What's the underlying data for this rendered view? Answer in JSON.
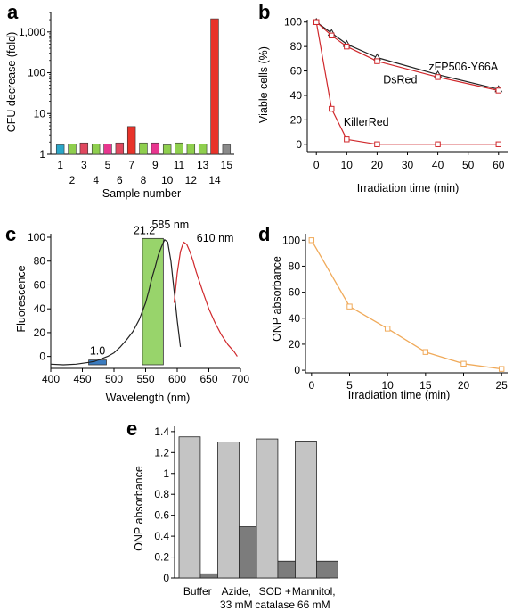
{
  "colors": {
    "bars_a": [
      "#2aa6c8",
      "#8fcf4e",
      "#e0485f",
      "#8fcf4e",
      "#e8368f",
      "#e0485f",
      "#e8332a",
      "#8fcf4e",
      "#e8368f",
      "#8fcf4e",
      "#8fcf4e",
      "#8fcf4e",
      "#8fcf4e",
      "#e8332a",
      "#8a8a8a"
    ],
    "black": "#222222",
    "red": "#d0282c",
    "orange": "#f0aa5a",
    "green_box": "#98d46b",
    "blue_box": "#3a7bbf",
    "bar_light": "#c4c4c4",
    "bar_dark": "#7c7c7c"
  },
  "panels": {
    "a": {
      "label": "a"
    },
    "b": {
      "label": "b"
    },
    "c": {
      "label": "c"
    },
    "d": {
      "label": "d"
    },
    "e": {
      "label": "e"
    }
  },
  "chart_data": [
    {
      "id": "a",
      "type": "bar",
      "ylabel": "CFU decrease (fold)",
      "xlabel": "Sample number",
      "yscale": "log",
      "ylim": [
        1,
        3000
      ],
      "yticks": [
        1,
        10,
        100,
        1000
      ],
      "ytick_labels": [
        "1",
        "10",
        "100",
        "1,000"
      ],
      "categories": [
        "1",
        "2",
        "3",
        "4",
        "5",
        "6",
        "7",
        "8",
        "9",
        "10",
        "11",
        "12",
        "13",
        "14",
        "15"
      ],
      "values": [
        1.7,
        1.8,
        1.9,
        1.8,
        1.8,
        1.9,
        4.8,
        1.9,
        1.9,
        1.7,
        1.9,
        1.8,
        1.8,
        2100,
        1.7
      ],
      "grid": false
    },
    {
      "id": "b",
      "type": "line",
      "ylabel": "Viable cells (%)",
      "xlabel": "Irradiation time (min)",
      "xlim": [
        -3,
        63
      ],
      "ylim": [
        -6,
        102
      ],
      "xticks": [
        0,
        10,
        20,
        30,
        40,
        50,
        60
      ],
      "yticks": [
        0,
        20,
        40,
        60,
        80,
        100
      ],
      "series": [
        {
          "name": "zFP506-Y66A",
          "x": [
            0,
            5,
            10,
            20,
            40,
            60
          ],
          "y": [
            100,
            91,
            82,
            71,
            57,
            45
          ]
        },
        {
          "name": "DsRed",
          "x": [
            0,
            5,
            10,
            20,
            40,
            60
          ],
          "y": [
            100,
            89,
            80,
            68,
            55,
            44
          ]
        },
        {
          "name": "KillerRed",
          "x": [
            0,
            5,
            10,
            20,
            40,
            60
          ],
          "y": [
            100,
            29,
            4,
            0,
            0,
            0
          ]
        }
      ],
      "grid": false
    },
    {
      "id": "c",
      "type": "line",
      "ylabel": "Fluorescence",
      "xlabel": "Wavelength (nm)",
      "xlim": [
        400,
        700
      ],
      "ylim": [
        -10,
        103
      ],
      "xticks": [
        400,
        450,
        500,
        550,
        600,
        650,
        700
      ],
      "yticks": [
        0,
        20,
        40,
        60,
        80,
        100
      ],
      "series": [
        {
          "x": [
            400,
            420,
            440,
            460,
            470,
            480,
            490,
            500,
            510,
            520,
            530,
            540,
            550,
            555,
            560,
            565,
            570,
            575,
            580,
            585,
            590,
            595,
            600,
            605
          ],
          "y": [
            -6.5,
            -7,
            -6.5,
            -5,
            -4,
            -2,
            0,
            3,
            8,
            14,
            21,
            31,
            45,
            55,
            66,
            75,
            85,
            92,
            98,
            96,
            80,
            55,
            30,
            8
          ]
        },
        {
          "x": [
            595,
            600,
            605,
            610,
            615,
            620,
            625,
            630,
            640,
            650,
            660,
            670,
            680,
            690,
            695
          ],
          "y": [
            45,
            70,
            88,
            96,
            94,
            88,
            80,
            71,
            55,
            40,
            28,
            18,
            10,
            4,
            0
          ]
        }
      ],
      "boxes": [
        {
          "x0": 460,
          "x1": 488,
          "y0": -7,
          "y1": -3,
          "label": "1.0"
        },
        {
          "x0": 545,
          "x1": 578,
          "y0": -7,
          "y1": 99,
          "label": "21.2"
        }
      ],
      "annotations": [
        "585 nm",
        "610 nm"
      ],
      "grid": false
    },
    {
      "id": "d",
      "type": "line",
      "ylabel": "ONP absorbance",
      "xlabel": "Irradiation time (min)",
      "xlim": [
        -0.8,
        25.8
      ],
      "ylim": [
        -2,
        105
      ],
      "xticks": [
        0,
        5,
        10,
        15,
        20,
        25
      ],
      "yticks": [
        0,
        20,
        40,
        60,
        80,
        100
      ],
      "series": [
        {
          "x": [
            0,
            5,
            10,
            15,
            20,
            25
          ],
          "y": [
            100,
            49,
            32,
            14,
            5,
            1
          ]
        }
      ],
      "grid": false
    },
    {
      "id": "e",
      "type": "bar",
      "ylabel": "ONP absorbance",
      "ylim": [
        0,
        1.45
      ],
      "yticks": [
        0,
        0.2,
        0.4,
        0.6,
        0.8,
        1.0,
        1.2,
        1.4
      ],
      "ytick_labels": [
        "0",
        "0.2",
        "0.4",
        "0.6",
        "0.8",
        "1",
        "1.2",
        "1.4"
      ],
      "categories": [
        "Buffer",
        "Azide, 33 mM",
        "SOD + catalase",
        "Mannitol, 66 mM"
      ],
      "category_lines": [
        [
          "Buffer"
        ],
        [
          "Azide,",
          "33 mM"
        ],
        [
          "SOD +",
          "catalase"
        ],
        [
          "Mannitol,",
          "66 mM"
        ]
      ],
      "series": [
        {
          "values": [
            1.35,
            1.3,
            1.33,
            1.31
          ]
        },
        {
          "values": [
            0.04,
            0.49,
            0.16,
            0.16
          ]
        }
      ],
      "grid": false
    }
  ]
}
